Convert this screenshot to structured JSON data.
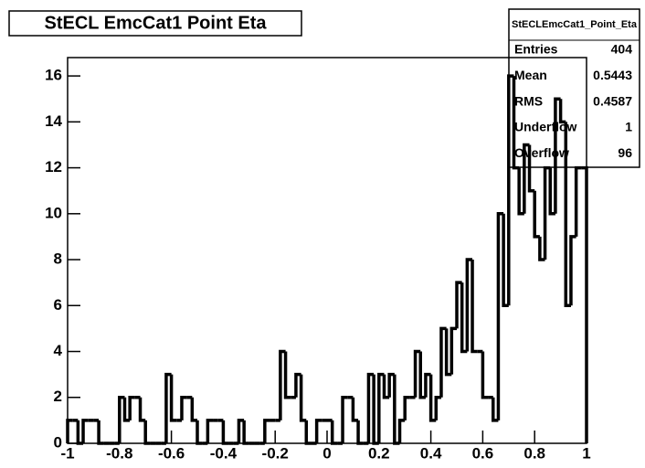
{
  "chart_data": {
    "type": "histogram",
    "title": "StECL EmcCat1 Point Eta",
    "bins": [
      -1,
      -0.98,
      -0.96,
      -0.94,
      -0.92,
      -0.9,
      -0.88,
      -0.86,
      -0.84,
      -0.82,
      -0.8,
      -0.78,
      -0.76,
      -0.74,
      -0.72,
      -0.7,
      -0.68,
      -0.66,
      -0.64,
      -0.62,
      -0.6,
      -0.58,
      -0.56,
      -0.54,
      -0.52,
      -0.5,
      -0.48,
      -0.46,
      -0.44,
      -0.42,
      -0.4,
      -0.38,
      -0.36,
      -0.34,
      -0.32,
      -0.3,
      -0.28,
      -0.26,
      -0.24,
      -0.22,
      -0.2,
      -0.18,
      -0.16,
      -0.14,
      -0.12,
      -0.1,
      -0.08,
      -0.06,
      -0.04,
      -0.02,
      0,
      0.02,
      0.04,
      0.06,
      0.08,
      0.1,
      0.12,
      0.14,
      0.16,
      0.18,
      0.2,
      0.22,
      0.24,
      0.26,
      0.28,
      0.3,
      0.32,
      0.34,
      0.36,
      0.38,
      0.4,
      0.42,
      0.44,
      0.46,
      0.48,
      0.5,
      0.52,
      0.54,
      0.56,
      0.58,
      0.6,
      0.62,
      0.64,
      0.66,
      0.68,
      0.7,
      0.72,
      0.74,
      0.76,
      0.78,
      0.8,
      0.82,
      0.84,
      0.86,
      0.88,
      0.9,
      0.92,
      0.94,
      0.96,
      0.98,
      1
    ],
    "values": [
      1,
      1,
      0,
      1,
      1,
      1,
      0,
      0,
      0,
      0,
      2,
      1,
      2,
      2,
      1,
      0,
      0,
      0,
      0,
      3,
      1,
      1,
      2,
      2,
      1,
      0,
      0,
      1,
      1,
      1,
      0,
      0,
      0,
      1,
      0,
      0,
      0,
      0,
      1,
      1,
      1,
      4,
      2,
      2,
      3,
      1,
      0,
      0,
      1,
      1,
      1,
      0,
      0,
      2,
      2,
      1,
      0,
      0,
      3,
      0,
      3,
      2,
      3,
      0,
      1,
      2,
      2,
      4,
      2,
      3,
      1,
      2,
      5,
      3,
      5,
      7,
      4,
      8,
      4,
      4,
      2,
      2,
      1,
      10,
      6,
      16,
      12,
      10,
      13,
      11,
      9,
      8,
      12,
      10,
      15,
      14,
      6,
      9,
      12,
      12
    ],
    "color": "#000000",
    "xlim": [
      -1,
      1
    ],
    "xticks": [
      -1,
      -0.8,
      -0.6,
      -0.4,
      -0.2,
      0,
      0.2,
      0.4,
      0.6,
      0.8,
      1
    ],
    "ylim": [
      0,
      16.8
    ],
    "yticks": [
      0,
      2,
      4,
      6,
      8,
      10,
      12,
      14,
      16
    ],
    "stats": {
      "name": "StECLEmcCat1_Point_Eta",
      "rows": [
        [
          "Entries",
          404
        ],
        [
          "Mean",
          0.5443
        ],
        [
          "RMS",
          0.4587
        ],
        [
          "Underflow",
          1
        ],
        [
          "Overflow",
          96
        ]
      ]
    }
  }
}
